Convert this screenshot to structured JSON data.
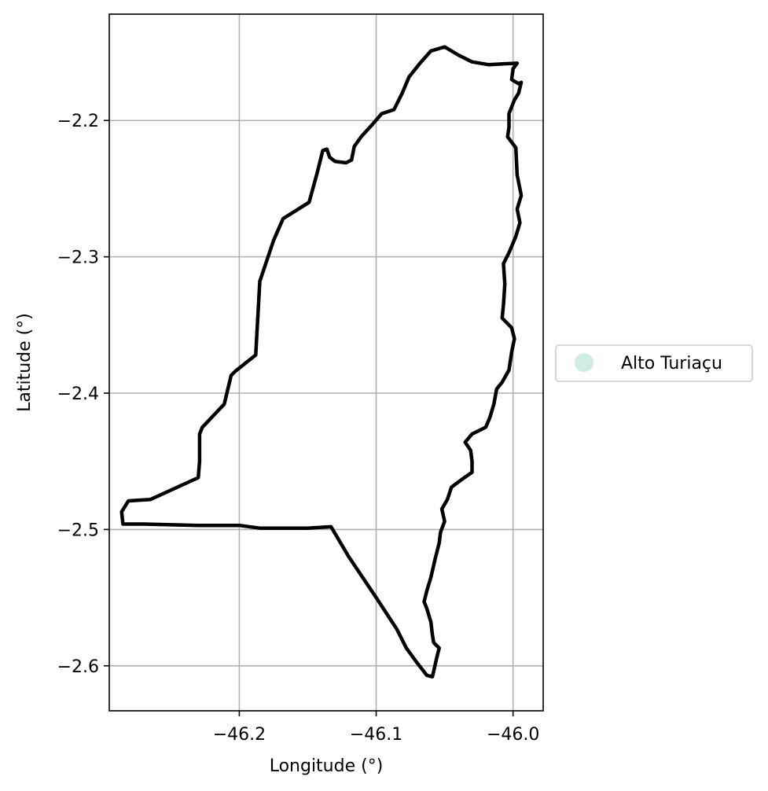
{
  "chart_data": {
    "type": "map",
    "xlabel": "Longitude (°)",
    "ylabel": "Latitude (°)",
    "xlim": [
      -46.295,
      -45.978
    ],
    "ylim": [
      -2.633,
      -2.122
    ],
    "xticks": [
      -46.2,
      -46.1,
      -46.0
    ],
    "xtick_labels": [
      "−46.2",
      "−46.1",
      "−46.0"
    ],
    "yticks": [
      -2.2,
      -2.3,
      -2.4,
      -2.5,
      -2.6
    ],
    "ytick_labels": [
      "−2.2",
      "−2.3",
      "−2.4",
      "−2.5",
      "−2.6"
    ],
    "grid": true,
    "legend": {
      "placement": "outside-right",
      "entries": [
        {
          "label": "Alto Turiaçu",
          "color": "#d1ece0"
        }
      ]
    },
    "boundary_color": "#000000",
    "boundary": [
      [
        -46.05,
        -2.146
      ],
      [
        -46.04,
        -2.152
      ],
      [
        -46.03,
        -2.157
      ],
      [
        -46.018,
        -2.159
      ],
      [
        -45.997,
        -2.158
      ],
      [
        -46.0,
        -2.162
      ],
      [
        -46.001,
        -2.17
      ],
      [
        -45.996,
        -2.173
      ],
      [
        -45.994,
        -2.172
      ],
      [
        -45.996,
        -2.18
      ],
      [
        -45.999,
        -2.185
      ],
      [
        -46.003,
        -2.195
      ],
      [
        -46.003,
        -2.205
      ],
      [
        -46.004,
        -2.212
      ],
      [
        -45.998,
        -2.22
      ],
      [
        -45.997,
        -2.24
      ],
      [
        -45.994,
        -2.255
      ],
      [
        -45.997,
        -2.265
      ],
      [
        -45.995,
        -2.275
      ],
      [
        -45.998,
        -2.285
      ],
      [
        -46.003,
        -2.297
      ],
      [
        -46.007,
        -2.305
      ],
      [
        -46.006,
        -2.32
      ],
      [
        -46.007,
        -2.335
      ],
      [
        -46.008,
        -2.345
      ],
      [
        -46.001,
        -2.352
      ],
      [
        -45.999,
        -2.36
      ],
      [
        -46.001,
        -2.37
      ],
      [
        -46.003,
        -2.383
      ],
      [
        -46.008,
        -2.392
      ],
      [
        -46.012,
        -2.397
      ],
      [
        -46.014,
        -2.408
      ],
      [
        -46.017,
        -2.418
      ],
      [
        -46.02,
        -2.425
      ],
      [
        -46.03,
        -2.43
      ],
      [
        -46.035,
        -2.436
      ],
      [
        -46.031,
        -2.442
      ],
      [
        -46.03,
        -2.45
      ],
      [
        -46.03,
        -2.458
      ],
      [
        -46.037,
        -2.463
      ],
      [
        -46.045,
        -2.469
      ],
      [
        -46.048,
        -2.478
      ],
      [
        -46.052,
        -2.485
      ],
      [
        -46.05,
        -2.494
      ],
      [
        -46.053,
        -2.502
      ],
      [
        -46.054,
        -2.51
      ],
      [
        -46.057,
        -2.522
      ],
      [
        -46.06,
        -2.535
      ],
      [
        -46.063,
        -2.545
      ],
      [
        -46.065,
        -2.553
      ],
      [
        -46.063,
        -2.558
      ],
      [
        -46.06,
        -2.568
      ],
      [
        -46.059,
        -2.577
      ],
      [
        -46.058,
        -2.583
      ],
      [
        -46.054,
        -2.587
      ],
      [
        -46.056,
        -2.595
      ],
      [
        -46.058,
        -2.604
      ],
      [
        -46.059,
        -2.608
      ],
      [
        -46.063,
        -2.607
      ],
      [
        -46.07,
        -2.598
      ],
      [
        -46.078,
        -2.587
      ],
      [
        -46.085,
        -2.573
      ],
      [
        -46.1,
        -2.55
      ],
      [
        -46.12,
        -2.52
      ],
      [
        -46.133,
        -2.498
      ],
      [
        -46.15,
        -2.499
      ],
      [
        -46.17,
        -2.499
      ],
      [
        -46.185,
        -2.499
      ],
      [
        -46.2,
        -2.497
      ],
      [
        -46.23,
        -2.497
      ],
      [
        -46.27,
        -2.496
      ],
      [
        -46.285,
        -2.496
      ],
      [
        -46.286,
        -2.487
      ],
      [
        -46.281,
        -2.479
      ],
      [
        -46.265,
        -2.478
      ],
      [
        -46.23,
        -2.462
      ],
      [
        -46.229,
        -2.45
      ],
      [
        -46.229,
        -2.43
      ],
      [
        -46.227,
        -2.425
      ],
      [
        -46.211,
        -2.408
      ],
      [
        -46.206,
        -2.387
      ],
      [
        -46.203,
        -2.384
      ],
      [
        -46.188,
        -2.372
      ],
      [
        -46.185,
        -2.318
      ],
      [
        -46.175,
        -2.288
      ],
      [
        -46.168,
        -2.272
      ],
      [
        -46.149,
        -2.26
      ],
      [
        -46.143,
        -2.238
      ],
      [
        -46.139,
        -2.222
      ],
      [
        -46.136,
        -2.221
      ],
      [
        -46.134,
        -2.227
      ],
      [
        -46.13,
        -2.23
      ],
      [
        -46.122,
        -2.231
      ],
      [
        -46.118,
        -2.229
      ],
      [
        -46.116,
        -2.219
      ],
      [
        -46.111,
        -2.212
      ],
      [
        -46.102,
        -2.202
      ],
      [
        -46.096,
        -2.195
      ],
      [
        -46.087,
        -2.192
      ],
      [
        -46.081,
        -2.18
      ],
      [
        -46.076,
        -2.168
      ],
      [
        -46.068,
        -2.158
      ],
      [
        -46.06,
        -2.149
      ],
      [
        -46.05,
        -2.146
      ]
    ]
  }
}
